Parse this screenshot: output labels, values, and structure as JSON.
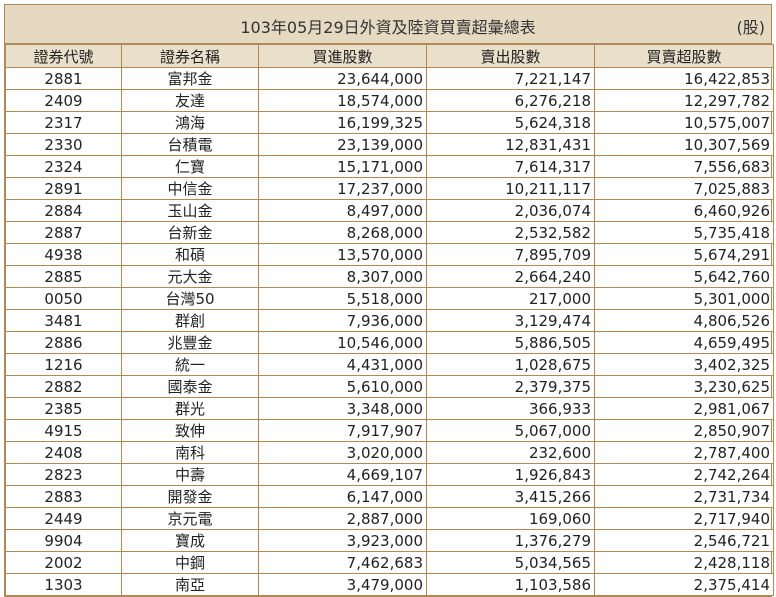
{
  "title": "103年05月29日外資及陸資買賣超彙總表",
  "unit": "(股)",
  "headers": [
    "證券代號",
    "證券名稱",
    "買進股數",
    "賣出股數",
    "買賣超股數"
  ],
  "rows": [
    [
      "2881",
      "富邦金",
      "23,644,000",
      "7,221,147",
      "16,422,853"
    ],
    [
      "2409",
      "友達",
      "18,574,000",
      "6,276,218",
      "12,297,782"
    ],
    [
      "2317",
      "鴻海",
      "16,199,325",
      "5,624,318",
      "10,575,007"
    ],
    [
      "2330",
      "台積電",
      "23,139,000",
      "12,831,431",
      "10,307,569"
    ],
    [
      "2324",
      "仁寶",
      "15,171,000",
      "7,614,317",
      "7,556,683"
    ],
    [
      "2891",
      "中信金",
      "17,237,000",
      "10,211,117",
      "7,025,883"
    ],
    [
      "2884",
      "玉山金",
      "8,497,000",
      "2,036,074",
      "6,460,926"
    ],
    [
      "2887",
      "台新金",
      "8,268,000",
      "2,532,582",
      "5,735,418"
    ],
    [
      "4938",
      "和碩",
      "13,570,000",
      "7,895,709",
      "5,674,291"
    ],
    [
      "2885",
      "元大金",
      "8,307,000",
      "2,664,240",
      "5,642,760"
    ],
    [
      "0050",
      "台灣50",
      "5,518,000",
      "217,000",
      "5,301,000"
    ],
    [
      "3481",
      "群創",
      "7,936,000",
      "3,129,474",
      "4,806,526"
    ],
    [
      "2886",
      "兆豐金",
      "10,546,000",
      "5,886,505",
      "4,659,495"
    ],
    [
      "1216",
      "統一",
      "4,431,000",
      "1,028,675",
      "3,402,325"
    ],
    [
      "2882",
      "國泰金",
      "5,610,000",
      "2,379,375",
      "3,230,625"
    ],
    [
      "2385",
      "群光",
      "3,348,000",
      "366,933",
      "2,981,067"
    ],
    [
      "4915",
      "致伸",
      "7,917,907",
      "5,067,000",
      "2,850,907"
    ],
    [
      "2408",
      "南科",
      "3,020,000",
      "232,600",
      "2,787,400"
    ],
    [
      "2823",
      "中壽",
      "4,669,107",
      "1,926,843",
      "2,742,264"
    ],
    [
      "2883",
      "開發金",
      "6,147,000",
      "3,415,266",
      "2,731,734"
    ],
    [
      "2449",
      "京元電",
      "2,887,000",
      "169,060",
      "2,717,940"
    ],
    [
      "9904",
      "寶成",
      "3,923,000",
      "1,376,279",
      "2,546,721"
    ],
    [
      "2002",
      "中鋼",
      "7,462,683",
      "5,034,565",
      "2,428,118"
    ],
    [
      "1303",
      "南亞",
      "3,479,000",
      "1,103,586",
      "2,375,414"
    ]
  ]
}
